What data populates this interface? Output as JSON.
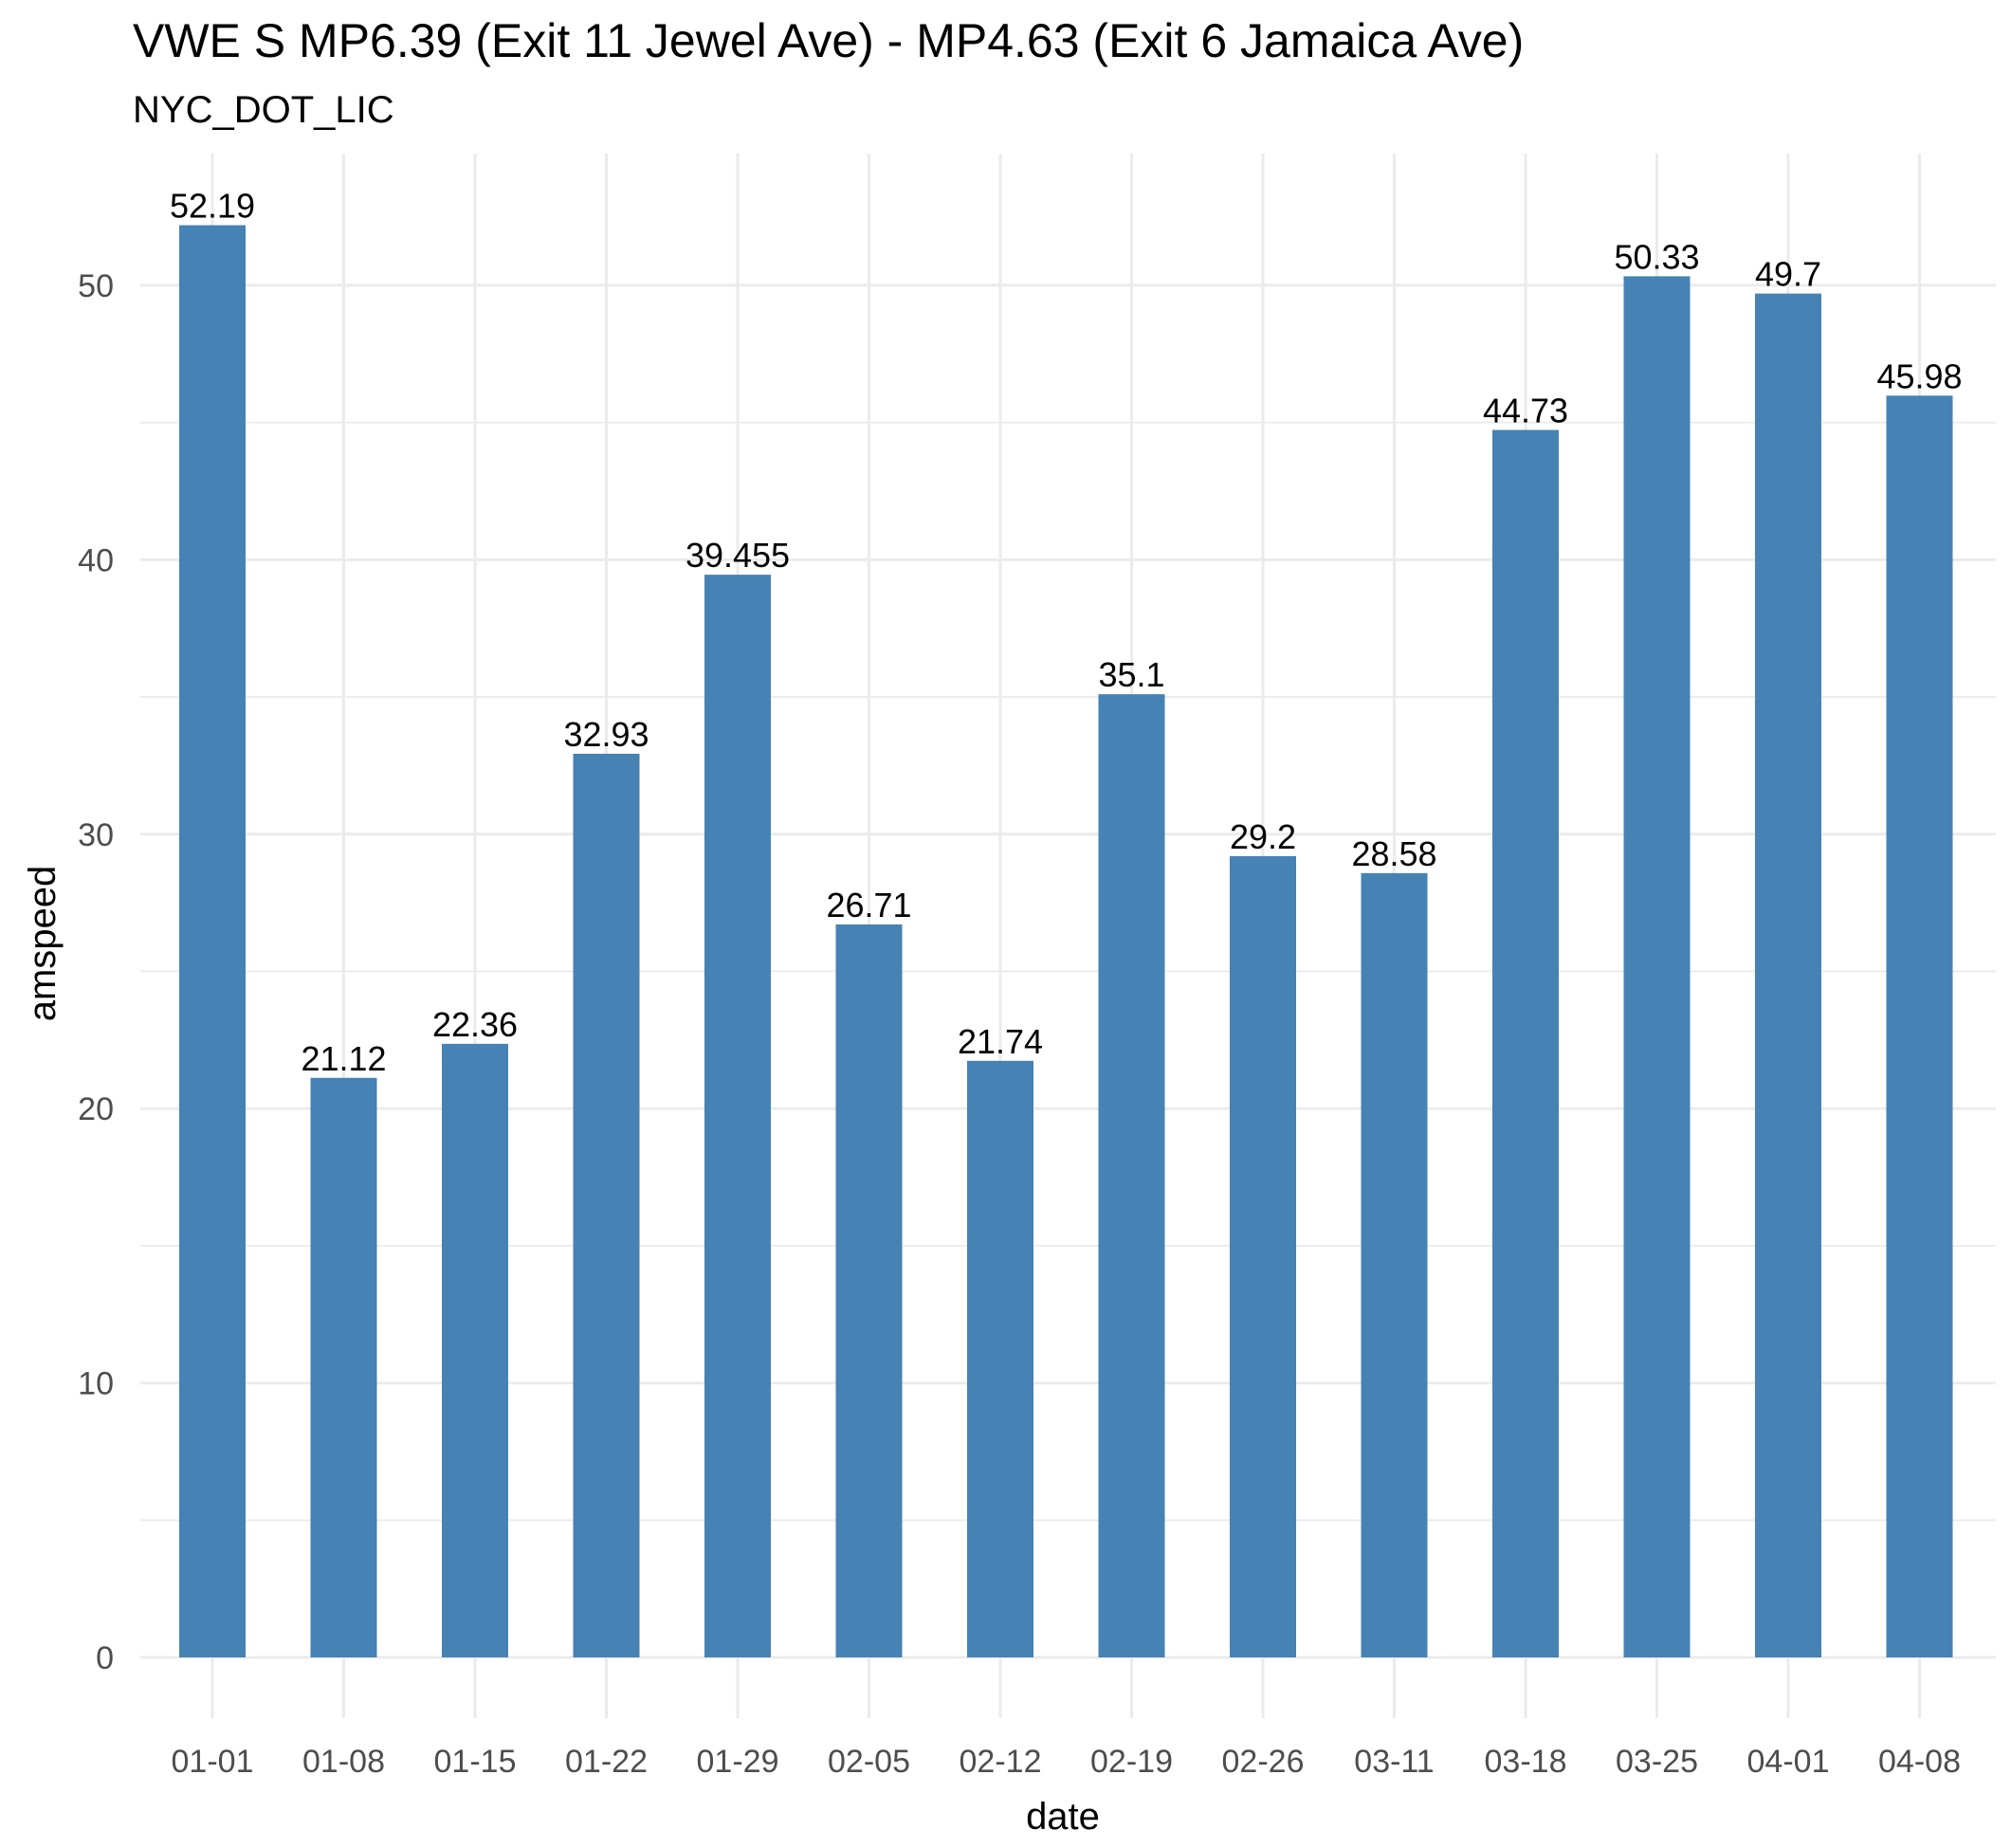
{
  "chart_data": {
    "type": "bar",
    "title": "VWE S MP6.39 (Exit 11 Jewel Ave) - MP4.63 (Exit 6 Jamaica Ave)",
    "subtitle": "NYC_DOT_LIC",
    "xlabel": "date",
    "ylabel": "amspeed",
    "categories": [
      "01-01",
      "01-08",
      "01-15",
      "01-22",
      "01-29",
      "02-05",
      "02-12",
      "02-19",
      "02-26",
      "03-11",
      "03-18",
      "03-25",
      "04-01",
      "04-08"
    ],
    "values": [
      52.19,
      21.12,
      22.36,
      32.93,
      39.455,
      26.71,
      21.74,
      35.1,
      29.2,
      28.58,
      44.73,
      50.33,
      49.7,
      45.98
    ],
    "labels": [
      "52.19",
      "21.12",
      "22.36",
      "32.93",
      "39.455",
      "26.71",
      "21.74",
      "35.1",
      "29.2",
      "28.58",
      "44.73",
      "50.33",
      "49.7",
      "45.98"
    ],
    "yticks": [
      0,
      10,
      20,
      30,
      40,
      50
    ],
    "ylim": [
      0,
      54.8
    ],
    "bar_color": "#4682B4",
    "grid_color": "#EBEBEB",
    "grid": true
  }
}
